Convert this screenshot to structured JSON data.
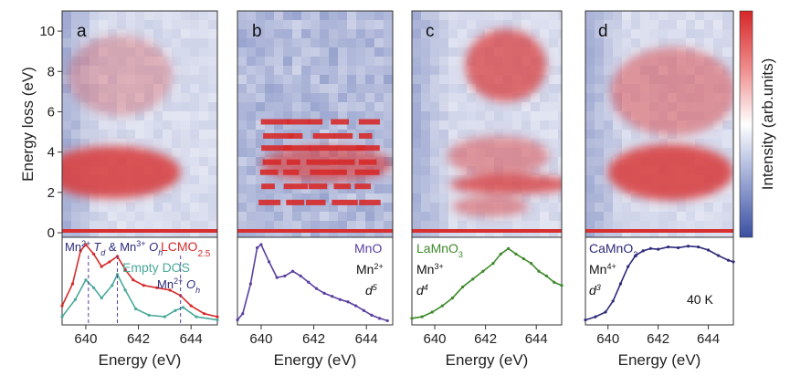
{
  "chart_data": [
    {
      "type": "heatmap",
      "panel": "a",
      "ylabel": "Energy loss (eV)",
      "ylim": [
        0,
        11
      ],
      "yticks": [
        "0",
        "2",
        "4",
        "6",
        "8",
        "10"
      ],
      "blobs": [
        {
          "e": 641.0,
          "loss": 3.0,
          "we": 2.6,
          "wl": 1.3,
          "amp": 1.0
        },
        {
          "e": 641.3,
          "loss": 7.8,
          "we": 2.0,
          "wl": 2.0,
          "amp": 0.35
        }
      ]
    },
    {
      "type": "heatmap",
      "panel": "b",
      "blobs": [
        {
          "e": 642.5,
          "loss": 3.4,
          "we": 2.5,
          "wl": 0.9,
          "amp": 0.75
        }
      ],
      "stripes": [
        1.5,
        2.3,
        3.0,
        3.5,
        4.2,
        4.8,
        5.5
      ]
    },
    {
      "type": "heatmap",
      "panel": "c",
      "blobs": [
        {
          "e": 642.8,
          "loss": 8.3,
          "we": 1.6,
          "wl": 1.8,
          "amp": 0.85
        },
        {
          "e": 643.0,
          "loss": 2.4,
          "we": 2.4,
          "wl": 0.5,
          "amp": 0.9
        },
        {
          "e": 642.5,
          "loss": 3.8,
          "we": 2.0,
          "wl": 1.0,
          "amp": 0.55
        },
        {
          "e": 642.2,
          "loss": 1.3,
          "we": 1.5,
          "wl": 0.5,
          "amp": 0.6
        }
      ]
    },
    {
      "type": "heatmap",
      "panel": "d",
      "blobs": [
        {
          "e": 642.5,
          "loss": 3.0,
          "we": 2.5,
          "wl": 1.4,
          "amp": 1.0
        },
        {
          "e": 642.6,
          "loss": 7.0,
          "we": 2.5,
          "wl": 2.2,
          "amp": 0.55
        }
      ]
    },
    {
      "type": "line",
      "panel": "a",
      "xlabel": "Energy (eV)",
      "xticks": [
        "640",
        "642",
        "644"
      ],
      "series": [
        {
          "name": "LCMO2.5",
          "x": [
            639.1,
            639.5,
            639.8,
            640.0,
            640.3,
            640.6,
            640.9,
            641.2,
            641.5,
            641.8,
            642.2,
            642.7,
            643.2,
            643.6,
            644.0,
            644.5,
            645.0
          ],
          "y": [
            0.22,
            0.5,
            0.92,
            1.0,
            0.88,
            0.72,
            0.78,
            0.85,
            0.68,
            0.55,
            0.48,
            0.45,
            0.42,
            0.35,
            0.22,
            0.12,
            0.08
          ]
        },
        {
          "name": "Empty DOS",
          "x": [
            639.1,
            639.6,
            640.0,
            640.3,
            640.6,
            641.0,
            641.2,
            641.5,
            641.9,
            642.4,
            643.0,
            643.4,
            643.7,
            644.2,
            645.0
          ],
          "y": [
            0.08,
            0.3,
            0.55,
            0.45,
            0.32,
            0.48,
            0.62,
            0.42,
            0.18,
            0.1,
            0.08,
            0.16,
            0.2,
            0.08,
            0.04
          ]
        }
      ],
      "markers": [
        640.1,
        641.2,
        643.6
      ],
      "labels": {
        "mn_td": "Mn",
        "mn_td_sup": "2+",
        "td": "T",
        "td_sub": "d",
        "and_mn": " & Mn",
        "and_mn_sup": "3+",
        "oh": " O",
        "oh_sub": "h",
        "lcmo": "LCMO",
        "lcmo_sub": "2.5",
        "empty_dos": "Empty DOS",
        "mn2": "Mn",
        "mn2_sup": "2+",
        "mn2_oh": " O",
        "mn2_oh_sub": "h"
      }
    },
    {
      "type": "line",
      "panel": "b",
      "xlabel": "Energy (eV)",
      "xticks": [
        "640",
        "642",
        "644"
      ],
      "series": [
        {
          "name": "MnO",
          "x": [
            639.1,
            639.3,
            639.6,
            639.85,
            640.0,
            640.3,
            640.6,
            640.9,
            641.2,
            641.5,
            641.8,
            642.1,
            642.4,
            642.7,
            643.0,
            643.3,
            643.6,
            643.9,
            644.2,
            644.5,
            644.8
          ],
          "y": [
            0.04,
            0.12,
            0.5,
            0.96,
            1.0,
            0.78,
            0.58,
            0.6,
            0.66,
            0.6,
            0.52,
            0.44,
            0.38,
            0.34,
            0.3,
            0.27,
            0.22,
            0.16,
            0.1,
            0.06,
            0.03
          ]
        }
      ],
      "labels": {
        "compound": "MnO",
        "ion": "Mn",
        "ion_sup": "2+",
        "d": "d",
        "d_sup": "5"
      }
    },
    {
      "type": "line",
      "panel": "c",
      "xlabel": "Energy (eV)",
      "xticks": [
        "640",
        "642",
        "644"
      ],
      "series": [
        {
          "name": "LaMnO3",
          "x": [
            639.1,
            639.5,
            639.9,
            640.3,
            640.7,
            641.1,
            641.5,
            641.9,
            642.3,
            642.6,
            642.9,
            643.2,
            643.5,
            643.8,
            644.1,
            644.4,
            644.7,
            645.0
          ],
          "y": [
            0.06,
            0.08,
            0.14,
            0.22,
            0.32,
            0.46,
            0.56,
            0.66,
            0.76,
            0.88,
            0.95,
            0.88,
            0.82,
            0.76,
            0.66,
            0.6,
            0.52,
            0.48
          ]
        }
      ],
      "labels": {
        "compound": "LaMnO",
        "compound_sub": "3",
        "ion": "Mn",
        "ion_sup": "3+",
        "d": "d",
        "d_sup": "4"
      }
    },
    {
      "type": "line",
      "panel": "d",
      "xlabel": "Energy (eV)",
      "xticks": [
        "640",
        "642",
        "644"
      ],
      "series": [
        {
          "name": "CaMnO3",
          "x": [
            639.1,
            639.5,
            639.9,
            640.2,
            640.5,
            640.8,
            641.1,
            641.4,
            641.7,
            642.0,
            642.4,
            642.8,
            643.2,
            643.6,
            644.0,
            644.4,
            644.8,
            645.0
          ],
          "y": [
            0.04,
            0.08,
            0.14,
            0.28,
            0.5,
            0.72,
            0.86,
            0.92,
            0.95,
            0.94,
            0.97,
            0.96,
            0.98,
            0.97,
            0.93,
            0.86,
            0.8,
            0.78
          ]
        }
      ],
      "labels": {
        "compound": "CaMnO",
        "compound_sub": "3",
        "ion": "Mn",
        "ion_sup": "4+",
        "d": "d",
        "d_sup": "3",
        "temp": "40 K"
      }
    }
  ],
  "panels": {
    "letters": [
      "a",
      "b",
      "c",
      "d"
    ]
  },
  "colorbar": {
    "label": "Intensity (arb.units)",
    "colors": [
      "#3a4fa0",
      "#ffffff",
      "#d62728"
    ]
  },
  "colors": {
    "red": "#d52b2b",
    "teal": "#4aa99a",
    "navy": "#2d2a7a",
    "green": "#3d8a2c",
    "purple": "#5a3ea0",
    "blue": "#3a4fa0"
  }
}
